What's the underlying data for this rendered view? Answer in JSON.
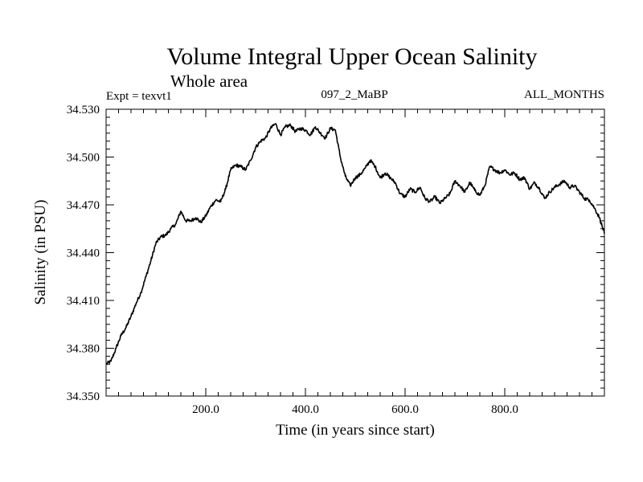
{
  "chart_data": {
    "type": "line",
    "title": "Volume Integral Upper Ocean Salinity",
    "subtitle": "Whole area",
    "annotations": {
      "left": "Expt = texvt1",
      "center": "097_2_MaBP",
      "right": "ALL_MONTHS"
    },
    "xlabel": "Time (in years since start)",
    "ylabel": "Salinity (in PSU)",
    "xlim": [
      0,
      1000
    ],
    "ylim": [
      34.35,
      34.53
    ],
    "xticks": [
      {
        "value": 200,
        "label": "200.0"
      },
      {
        "value": 400,
        "label": "400.0"
      },
      {
        "value": 600,
        "label": "600.0"
      },
      {
        "value": 800,
        "label": "800.0"
      }
    ],
    "yticks": [
      {
        "value": 34.35,
        "label": "34.350"
      },
      {
        "value": 34.38,
        "label": "34.380"
      },
      {
        "value": 34.41,
        "label": "34.410"
      },
      {
        "value": 34.44,
        "label": "34.440"
      },
      {
        "value": 34.47,
        "label": "34.470"
      },
      {
        "value": 34.5,
        "label": "34.500"
      },
      {
        "value": 34.53,
        "label": "34.530"
      }
    ],
    "series": [
      {
        "name": "salinity",
        "x": [
          0,
          10,
          20,
          30,
          40,
          50,
          60,
          70,
          80,
          90,
          100,
          110,
          120,
          130,
          140,
          150,
          160,
          170,
          180,
          190,
          200,
          210,
          220,
          230,
          240,
          250,
          260,
          270,
          280,
          290,
          300,
          310,
          320,
          330,
          340,
          350,
          360,
          370,
          380,
          390,
          400,
          410,
          420,
          430,
          440,
          450,
          460,
          470,
          480,
          490,
          500,
          510,
          520,
          530,
          540,
          550,
          560,
          570,
          580,
          590,
          600,
          610,
          620,
          630,
          640,
          650,
          660,
          670,
          680,
          690,
          700,
          710,
          720,
          730,
          740,
          750,
          760,
          770,
          780,
          790,
          800,
          810,
          820,
          830,
          840,
          850,
          860,
          870,
          880,
          890,
          900,
          910,
          920,
          930,
          940,
          950,
          960,
          970,
          980,
          990,
          1000
        ],
        "values": [
          34.37,
          34.372,
          34.38,
          34.388,
          34.393,
          34.4,
          34.408,
          34.415,
          34.425,
          34.435,
          34.446,
          34.45,
          34.451,
          34.455,
          34.458,
          34.466,
          34.46,
          34.46,
          34.462,
          34.459,
          34.463,
          34.469,
          34.473,
          34.472,
          34.48,
          34.492,
          34.495,
          34.494,
          34.492,
          34.498,
          34.506,
          34.51,
          34.512,
          34.518,
          34.521,
          34.514,
          34.519,
          34.52,
          34.516,
          34.518,
          34.517,
          34.514,
          34.519,
          34.515,
          34.512,
          34.518,
          34.517,
          34.5,
          34.488,
          34.482,
          34.487,
          34.489,
          34.493,
          34.498,
          34.494,
          34.487,
          34.49,
          34.487,
          34.484,
          34.477,
          34.475,
          34.48,
          34.478,
          34.481,
          34.474,
          34.472,
          34.475,
          34.471,
          34.474,
          34.477,
          34.485,
          34.482,
          34.478,
          34.484,
          34.479,
          34.476,
          34.482,
          34.494,
          34.492,
          34.49,
          34.492,
          34.489,
          34.49,
          34.486,
          34.487,
          34.48,
          34.484,
          34.48,
          34.474,
          34.478,
          34.481,
          34.483,
          34.485,
          34.481,
          34.482,
          34.478,
          34.474,
          34.473,
          34.468,
          34.462,
          34.452
        ]
      }
    ]
  }
}
